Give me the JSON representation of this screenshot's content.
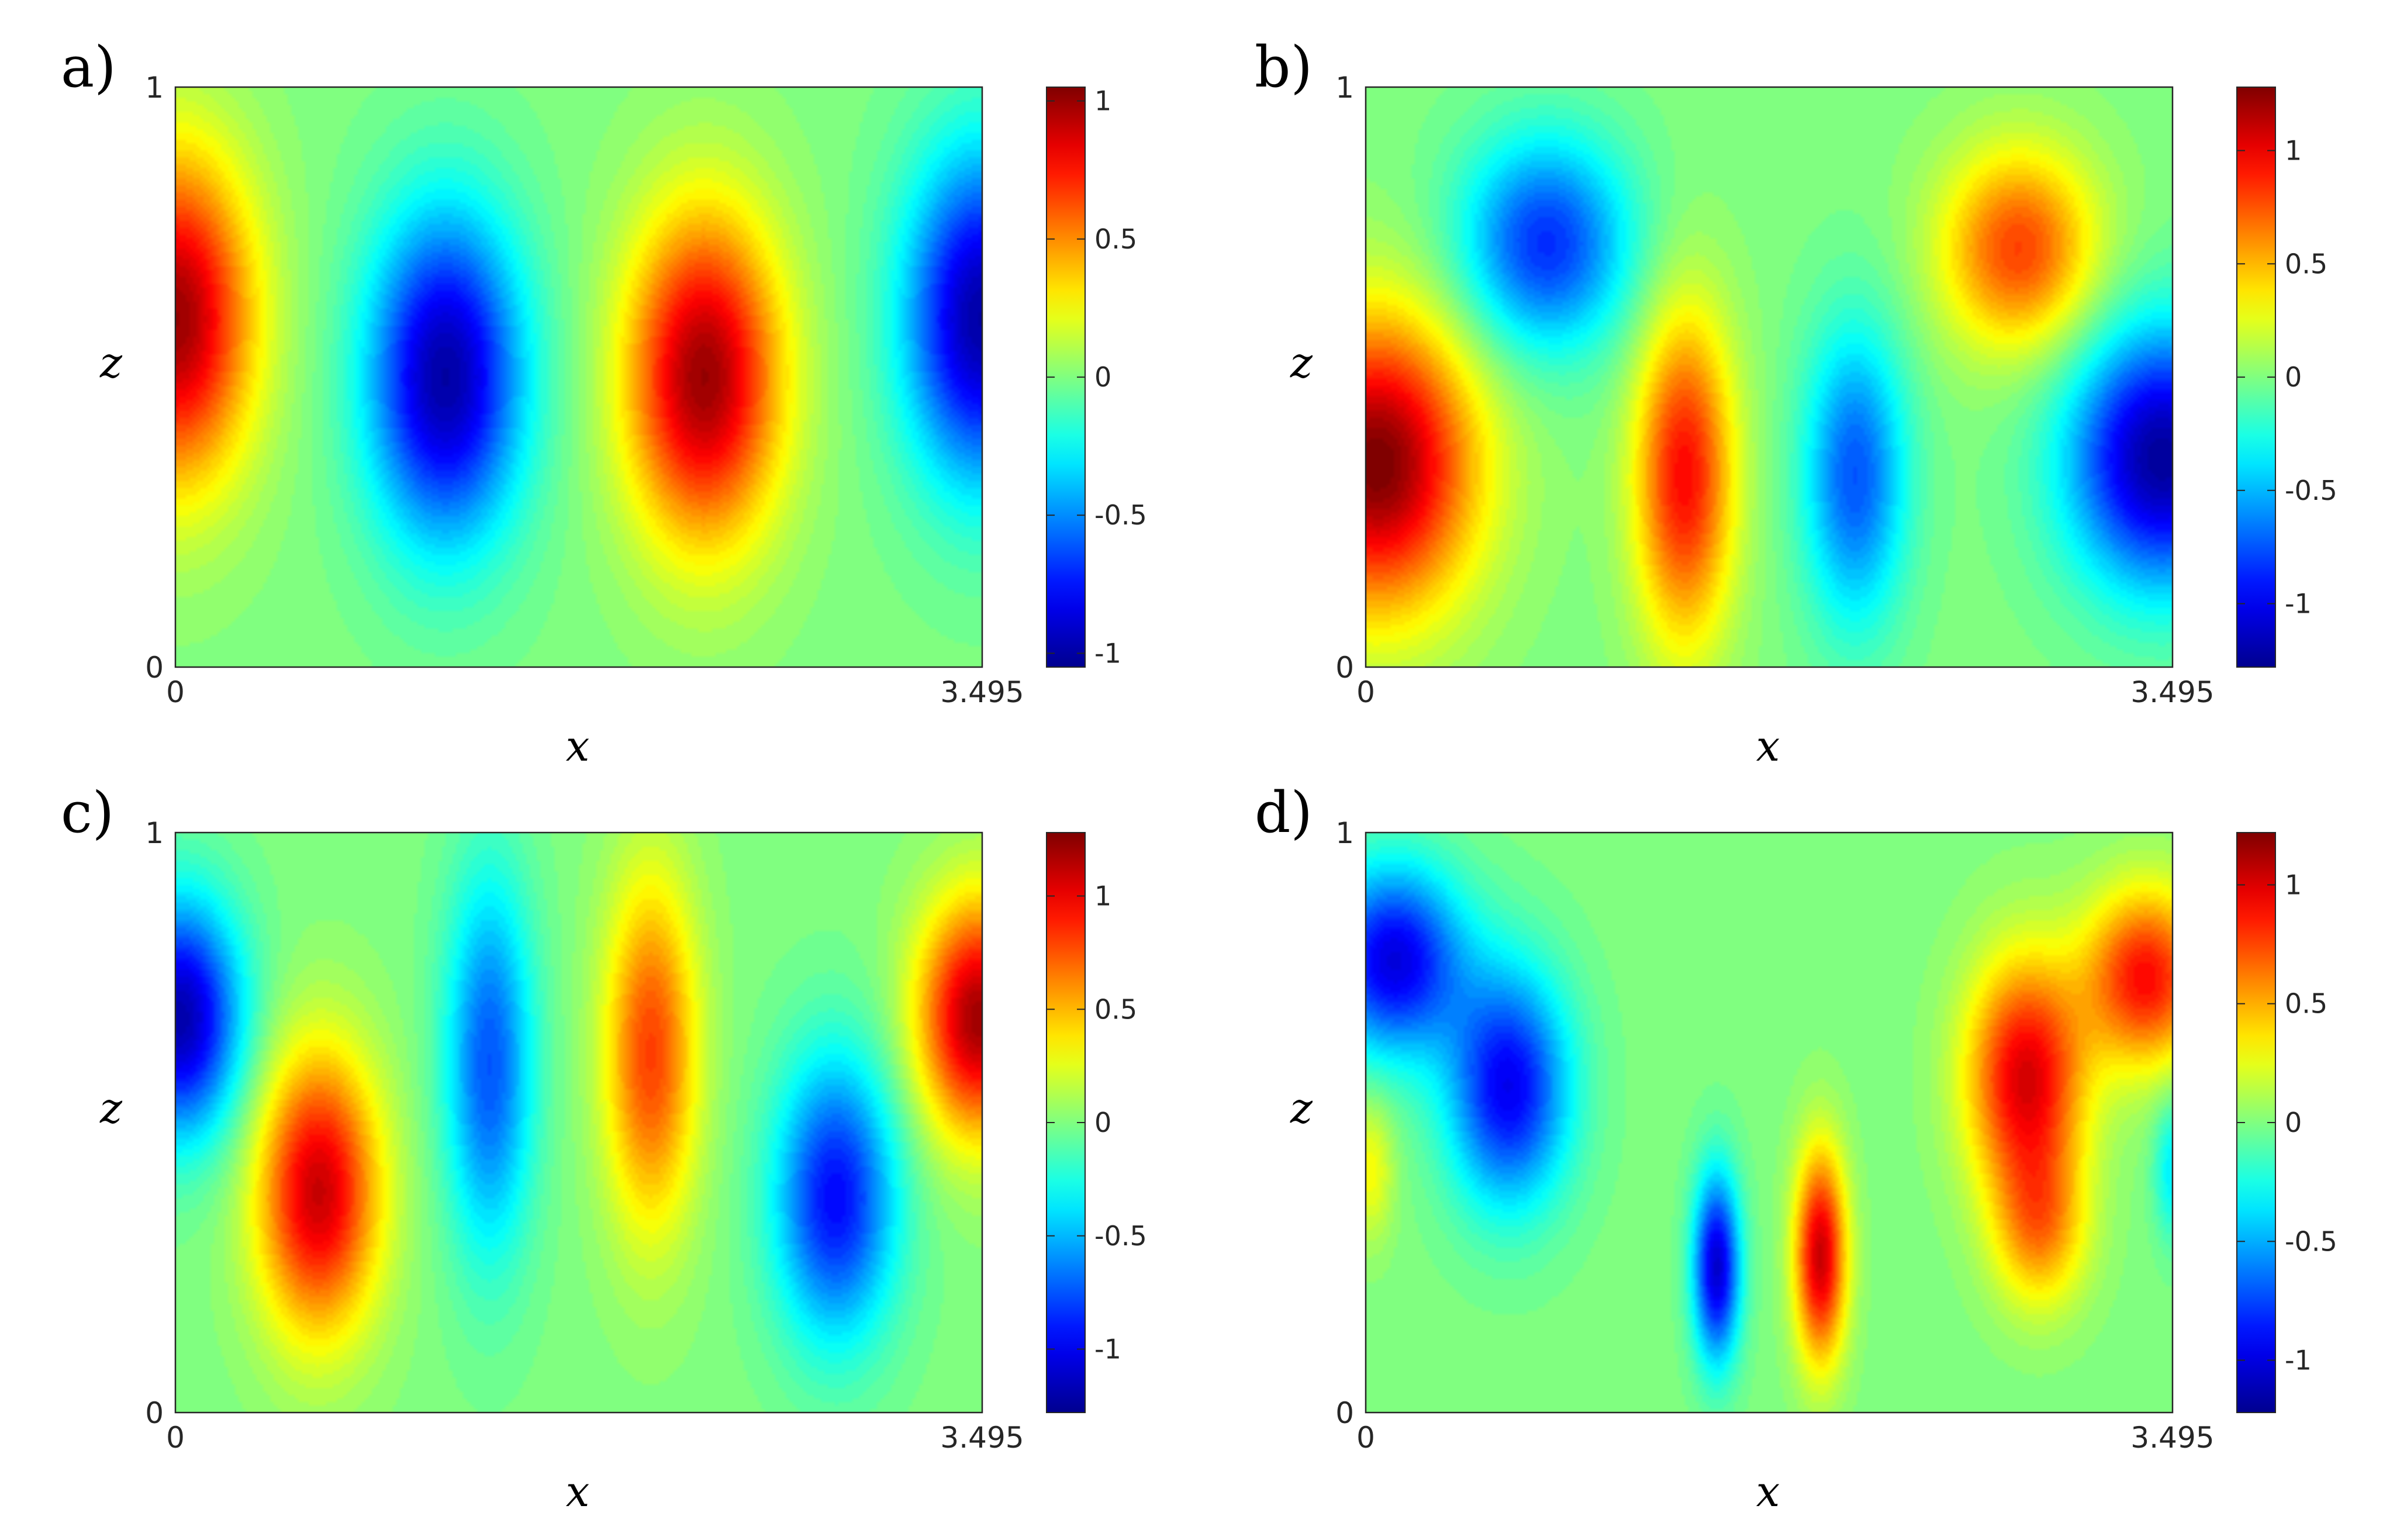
{
  "figure": {
    "colormap": "jet",
    "colormap_stops": [
      "#00008f",
      "#0000ff",
      "#00ffff",
      "#ffff00",
      "#ff0000",
      "#800000"
    ]
  },
  "chart_data": [
    {
      "type": "heatmap",
      "panel": "a)",
      "xlabel": "x",
      "ylabel": "z",
      "xlim": [
        0,
        3.495
      ],
      "ylim": [
        0,
        1
      ],
      "xticks": [
        "0",
        "3.495"
      ],
      "yticks": [
        "0",
        "1"
      ],
      "colorbar": {
        "range": [
          -1.05,
          1.05
        ],
        "ticks": [
          -1,
          -0.5,
          0,
          0.5,
          1
        ],
        "tick_labels": [
          "-1",
          "-0.5",
          "0",
          "0.5",
          "1"
        ]
      },
      "field_modes": [
        {
          "amp": 1.0,
          "x": 0.0,
          "z": 0.6,
          "sx": 0.33,
          "sz": 0.28
        },
        {
          "amp": -1.0,
          "x": 1.17,
          "z": 0.5,
          "sx": 0.33,
          "sz": 0.28
        },
        {
          "amp": 1.0,
          "x": 2.29,
          "z": 0.5,
          "sx": 0.33,
          "sz": 0.28
        },
        {
          "amp": -1.0,
          "x": 3.495,
          "z": 0.6,
          "sx": 0.33,
          "sz": 0.28
        }
      ]
    },
    {
      "type": "heatmap",
      "panel": "b)",
      "xlabel": "x",
      "ylabel": "z",
      "xlim": [
        0,
        3.495
      ],
      "ylim": [
        0,
        1
      ],
      "xticks": [
        "0",
        "3.495"
      ],
      "yticks": [
        "0",
        "1"
      ],
      "colorbar": {
        "range": [
          -1.28,
          1.28
        ],
        "ticks": [
          -1,
          -0.5,
          0,
          0.5,
          1
        ],
        "tick_labels": [
          "-1",
          "-0.5",
          "0",
          "0.5",
          "1"
        ]
      },
      "field_modes": [
        {
          "amp": 1.3,
          "x": 0.05,
          "z": 0.35,
          "sx": 0.42,
          "sz": 0.25
        },
        {
          "amp": -0.85,
          "x": 0.78,
          "z": 0.73,
          "sx": 0.36,
          "sz": 0.18
        },
        {
          "amp": 0.95,
          "x": 1.38,
          "z": 0.33,
          "sx": 0.21,
          "sz": 0.28
        },
        {
          "amp": -0.75,
          "x": 2.12,
          "z": 0.33,
          "sx": 0.22,
          "sz": 0.25
        },
        {
          "amp": 0.8,
          "x": 2.83,
          "z": 0.72,
          "sx": 0.33,
          "sz": 0.17
        },
        {
          "amp": -1.25,
          "x": 3.45,
          "z": 0.36,
          "sx": 0.4,
          "sz": 0.22
        }
      ]
    },
    {
      "type": "heatmap",
      "panel": "c)",
      "xlabel": "x",
      "ylabel": "z",
      "xlim": [
        0,
        3.495
      ],
      "ylim": [
        0,
        1
      ],
      "xticks": [
        "0",
        "3.495"
      ],
      "yticks": [
        "0",
        "1"
      ],
      "colorbar": {
        "range": [
          -1.28,
          1.28
        ],
        "ticks": [
          -1,
          -0.5,
          0,
          0.5,
          1
        ],
        "tick_labels": [
          "-1",
          "-0.5",
          "0",
          "0.5",
          "1"
        ]
      },
      "field_modes": [
        {
          "amp": -1.2,
          "x": 0.02,
          "z": 0.68,
          "sx": 0.26,
          "sz": 0.2
        },
        {
          "amp": 1.1,
          "x": 0.62,
          "z": 0.38,
          "sx": 0.26,
          "sz": 0.24
        },
        {
          "amp": -0.75,
          "x": 1.36,
          "z": 0.6,
          "sx": 0.19,
          "sz": 0.32
        },
        {
          "amp": 0.8,
          "x": 2.06,
          "z": 0.62,
          "sx": 0.2,
          "sz": 0.3
        },
        {
          "amp": -0.95,
          "x": 2.86,
          "z": 0.37,
          "sx": 0.26,
          "sz": 0.24
        },
        {
          "amp": 1.2,
          "x": 3.48,
          "z": 0.68,
          "sx": 0.26,
          "sz": 0.2
        }
      ]
    },
    {
      "type": "heatmap",
      "panel": "d)",
      "xlabel": "x",
      "ylabel": "z",
      "xlim": [
        0,
        3.495
      ],
      "ylim": [
        0,
        1
      ],
      "xticks": [
        "0",
        "3.495"
      ],
      "yticks": [
        "0",
        "1"
      ],
      "colorbar": {
        "range": [
          -1.22,
          1.22
        ],
        "ticks": [
          -1,
          -0.5,
          0,
          0.5,
          1
        ],
        "tick_labels": [
          "-1",
          "-0.5",
          "0",
          "0.5",
          "1"
        ]
      },
      "field_modes": [
        {
          "amp": -1.0,
          "x": 0.12,
          "z": 0.78,
          "sx": 0.3,
          "sz": 0.16
        },
        {
          "amp": -0.95,
          "x": 0.62,
          "z": 0.56,
          "sx": 0.26,
          "sz": 0.2
        },
        {
          "amp": 0.3,
          "x": 0.02,
          "z": 0.42,
          "sx": 0.1,
          "sz": 0.12
        },
        {
          "amp": -1.05,
          "x": 1.52,
          "z": 0.25,
          "sx": 0.1,
          "sz": 0.16
        },
        {
          "amp": 1.05,
          "x": 1.97,
          "z": 0.27,
          "sx": 0.11,
          "sz": 0.18
        },
        {
          "amp": 1.0,
          "x": 2.86,
          "z": 0.58,
          "sx": 0.25,
          "sz": 0.2
        },
        {
          "amp": 0.9,
          "x": 3.38,
          "z": 0.75,
          "sx": 0.26,
          "sz": 0.15
        },
        {
          "amp": 0.55,
          "x": 2.92,
          "z": 0.32,
          "sx": 0.2,
          "sz": 0.14
        },
        {
          "amp": -0.35,
          "x": 3.495,
          "z": 0.42,
          "sx": 0.08,
          "sz": 0.12
        }
      ]
    }
  ]
}
